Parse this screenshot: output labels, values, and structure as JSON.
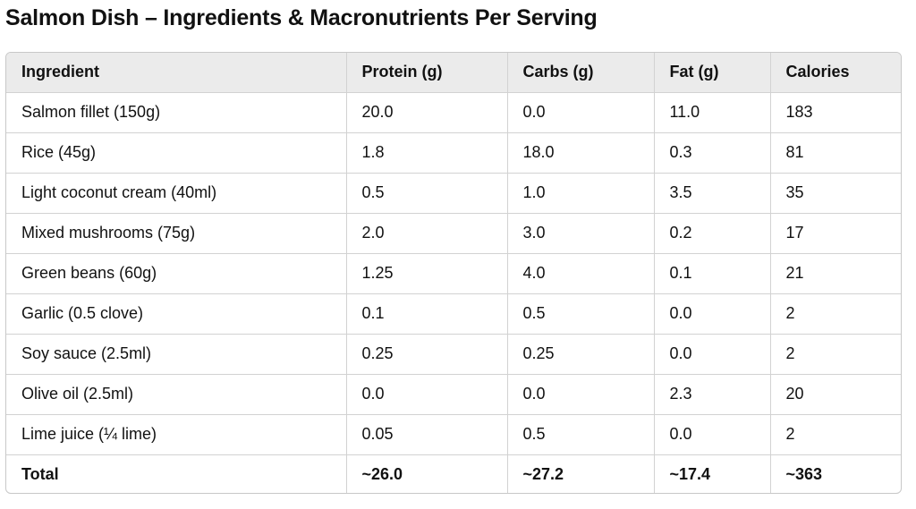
{
  "title": "Salmon Dish – Ingredients & Macronutrients Per Serving",
  "table": {
    "headers": [
      "Ingredient",
      "Protein (g)",
      "Carbs (g)",
      "Fat (g)",
      "Calories"
    ],
    "rows": [
      [
        "Salmon fillet (150g)",
        "20.0",
        "0.0",
        "11.0",
        "183"
      ],
      [
        "Rice (45g)",
        "1.8",
        "18.0",
        "0.3",
        "81"
      ],
      [
        "Light coconut cream (40ml)",
        "0.5",
        "1.0",
        "3.5",
        "35"
      ],
      [
        "Mixed mushrooms (75g)",
        "2.0",
        "3.0",
        "0.2",
        "17"
      ],
      [
        "Green beans (60g)",
        "1.25",
        "4.0",
        "0.1",
        "21"
      ],
      [
        "Garlic (0.5 clove)",
        "0.1",
        "0.5",
        "0.0",
        "2"
      ],
      [
        "Soy sauce (2.5ml)",
        "0.25",
        "0.25",
        "0.0",
        "2"
      ],
      [
        "Olive oil (2.5ml)",
        "0.0",
        "0.0",
        "2.3",
        "20"
      ],
      [
        "Lime juice (¼ lime)",
        "0.05",
        "0.5",
        "0.0",
        "2"
      ]
    ],
    "total": [
      "Total",
      "~26.0",
      "~27.2",
      "~17.4",
      "~363"
    ]
  }
}
